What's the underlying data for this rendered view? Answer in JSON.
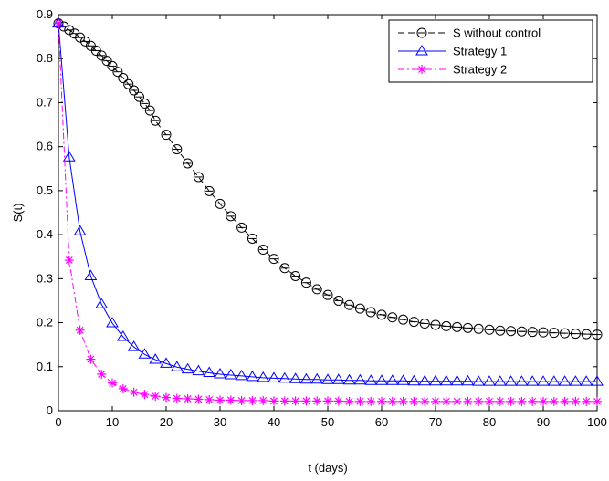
{
  "chart_data": {
    "type": "line",
    "title": "",
    "xlabel": "t (days)",
    "ylabel": "S(t)",
    "xlim": [
      0,
      100
    ],
    "ylim": [
      0,
      0.9
    ],
    "xticks": [
      "0",
      "10",
      "20",
      "30",
      "40",
      "50",
      "60",
      "70",
      "80",
      "90",
      "100"
    ],
    "yticks": [
      "0",
      "0.1",
      "0.2",
      "0.3",
      "0.4",
      "0.5",
      "0.6",
      "0.7",
      "0.8",
      "0.9"
    ],
    "grid": false,
    "legend_position": "top-right",
    "series": [
      {
        "name": "S without control",
        "color": "#000000",
        "line_style": "dashed",
        "marker": "circle",
        "x": [
          0,
          1,
          2,
          3,
          4,
          5,
          6,
          7,
          8,
          9,
          10,
          11,
          12,
          13,
          14,
          15,
          16,
          17,
          18,
          20,
          22,
          24,
          26,
          28,
          30,
          32,
          34,
          36,
          38,
          40,
          42,
          44,
          46,
          48,
          50,
          52,
          54,
          56,
          58,
          60,
          62,
          64,
          66,
          68,
          70,
          72,
          74,
          76,
          78,
          80,
          82,
          84,
          86,
          88,
          90,
          92,
          94,
          96,
          98,
          100
        ],
        "y": [
          0.88,
          0.873,
          0.865,
          0.857,
          0.848,
          0.839,
          0.829,
          0.818,
          0.807,
          0.795,
          0.783,
          0.77,
          0.756,
          0.742,
          0.728,
          0.713,
          0.698,
          0.682,
          0.659,
          0.627,
          0.594,
          0.562,
          0.531,
          0.499,
          0.47,
          0.442,
          0.416,
          0.391,
          0.366,
          0.345,
          0.324,
          0.306,
          0.291,
          0.276,
          0.263,
          0.25,
          0.24,
          0.232,
          0.224,
          0.218,
          0.212,
          0.207,
          0.202,
          0.198,
          0.195,
          0.192,
          0.19,
          0.188,
          0.186,
          0.184,
          0.182,
          0.181,
          0.18,
          0.179,
          0.178,
          0.177,
          0.176,
          0.175,
          0.174,
          0.173
        ]
      },
      {
        "name": "Strategy 1",
        "color": "#0000ff",
        "line_style": "solid",
        "marker": "triangle",
        "x": [
          0,
          2,
          4,
          6,
          8,
          10,
          12,
          14,
          16,
          18,
          20,
          22,
          24,
          26,
          28,
          30,
          32,
          34,
          36,
          38,
          40,
          42,
          44,
          46,
          48,
          50,
          52,
          54,
          56,
          58,
          60,
          62,
          64,
          66,
          68,
          70,
          72,
          74,
          76,
          78,
          80,
          82,
          84,
          86,
          88,
          90,
          92,
          94,
          96,
          98,
          100
        ],
        "y": [
          0.88,
          0.576,
          0.408,
          0.306,
          0.242,
          0.199,
          0.168,
          0.145,
          0.128,
          0.116,
          0.107,
          0.099,
          0.094,
          0.09,
          0.086,
          0.083,
          0.081,
          0.079,
          0.077,
          0.075,
          0.074,
          0.073,
          0.072,
          0.071,
          0.071,
          0.07,
          0.07,
          0.069,
          0.069,
          0.068,
          0.068,
          0.068,
          0.068,
          0.067,
          0.067,
          0.067,
          0.067,
          0.067,
          0.067,
          0.066,
          0.066,
          0.066,
          0.066,
          0.066,
          0.066,
          0.066,
          0.066,
          0.066,
          0.066,
          0.066,
          0.066
        ]
      },
      {
        "name": "Strategy 2",
        "color": "#ff00ff",
        "line_style": "dashdot",
        "marker": "asterisk",
        "x": [
          0,
          2,
          4,
          6,
          8,
          10,
          12,
          14,
          16,
          18,
          20,
          22,
          24,
          26,
          28,
          30,
          32,
          34,
          36,
          38,
          40,
          42,
          44,
          46,
          48,
          50,
          52,
          54,
          56,
          58,
          60,
          62,
          64,
          66,
          68,
          70,
          72,
          74,
          76,
          78,
          80,
          82,
          84,
          86,
          88,
          90,
          92,
          94,
          96,
          98,
          100
        ],
        "y": [
          0.88,
          0.342,
          0.183,
          0.117,
          0.083,
          0.063,
          0.05,
          0.042,
          0.037,
          0.033,
          0.03,
          0.028,
          0.027,
          0.026,
          0.025,
          0.024,
          0.024,
          0.023,
          0.023,
          0.023,
          0.022,
          0.022,
          0.022,
          0.022,
          0.022,
          0.022,
          0.022,
          0.021,
          0.021,
          0.021,
          0.021,
          0.021,
          0.021,
          0.021,
          0.021,
          0.021,
          0.021,
          0.021,
          0.021,
          0.021,
          0.021,
          0.021,
          0.021,
          0.021,
          0.021,
          0.021,
          0.021,
          0.021,
          0.021,
          0.021,
          0.021
        ]
      }
    ]
  }
}
